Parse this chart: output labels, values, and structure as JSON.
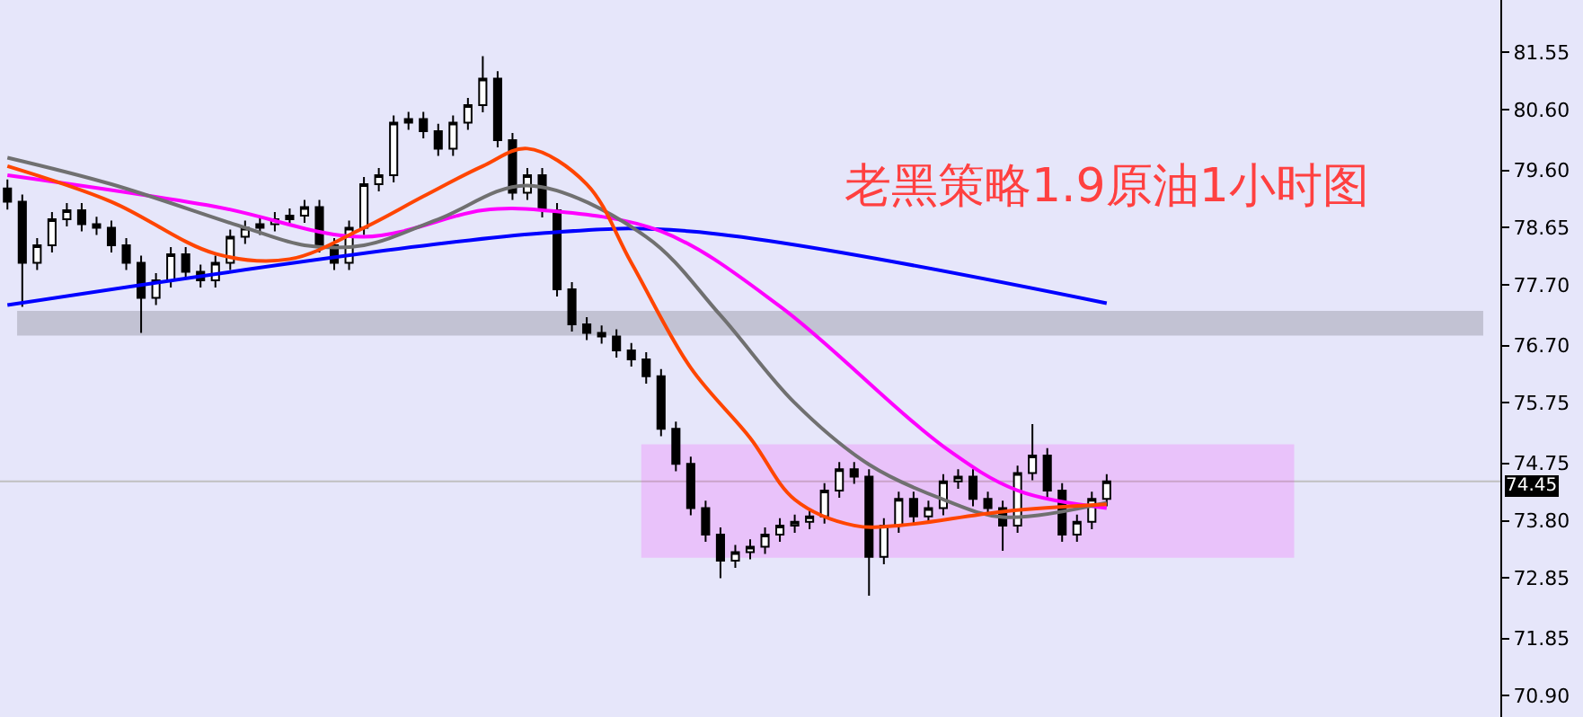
{
  "chart_data": {
    "type": "candlestick",
    "title": "老黑策略1.9原油1小时图",
    "categories": [
      null,
      null,
      null,
      null,
      null,
      null,
      null,
      null,
      null,
      null,
      null,
      null,
      null,
      null,
      null,
      null,
      null,
      null,
      null,
      null,
      null,
      null,
      null,
      null,
      null,
      null,
      null,
      null,
      null,
      null,
      null,
      null,
      null,
      null,
      null,
      null,
      null,
      null,
      null,
      null,
      null,
      null,
      null,
      null,
      null,
      null,
      null,
      null,
      null,
      null,
      null,
      null,
      null,
      null,
      null,
      null,
      null,
      null,
      null,
      null,
      null,
      null,
      null,
      null,
      null,
      null,
      null,
      null,
      null,
      null,
      null,
      null,
      null,
      null,
      null,
      null,
      null,
      null,
      null,
      null,
      null,
      null,
      null,
      null,
      null,
      null,
      null,
      null,
      null,
      null,
      null,
      null,
      null,
      null,
      null,
      null,
      null,
      null,
      null,
      null,
      null
    ],
    "ohlc": [
      [
        79.3,
        79.45,
        78.95,
        79.08
      ],
      [
        79.08,
        79.2,
        77.34,
        78.07
      ],
      [
        78.07,
        78.48,
        77.95,
        78.36
      ],
      [
        78.36,
        78.91,
        78.24,
        78.79
      ],
      [
        78.79,
        79.06,
        78.67,
        78.94
      ],
      [
        78.94,
        79.06,
        78.59,
        78.71
      ],
      [
        78.71,
        78.83,
        78.53,
        78.65
      ],
      [
        78.65,
        78.77,
        78.24,
        78.36
      ],
      [
        78.36,
        78.48,
        77.95,
        78.07
      ],
      [
        78.07,
        78.19,
        76.91,
        77.49
      ],
      [
        77.49,
        77.9,
        77.37,
        77.78
      ],
      [
        77.78,
        78.33,
        77.66,
        78.21
      ],
      [
        78.21,
        78.33,
        77.8,
        77.92
      ],
      [
        77.92,
        78.04,
        77.66,
        77.78
      ],
      [
        77.78,
        78.19,
        77.66,
        78.07
      ],
      [
        78.07,
        78.62,
        77.95,
        78.5
      ],
      [
        78.5,
        78.77,
        78.38,
        78.65
      ],
      [
        78.65,
        78.83,
        78.53,
        78.71
      ],
      [
        78.71,
        78.91,
        78.59,
        78.79
      ],
      [
        78.79,
        78.97,
        78.67,
        78.85
      ],
      [
        78.85,
        79.11,
        78.73,
        78.99
      ],
      [
        78.99,
        79.11,
        78.24,
        78.36
      ],
      [
        78.36,
        78.48,
        77.95,
        78.07
      ],
      [
        78.07,
        78.77,
        77.95,
        78.65
      ],
      [
        78.65,
        79.49,
        78.53,
        79.37
      ],
      [
        79.37,
        79.64,
        79.25,
        79.52
      ],
      [
        79.52,
        80.51,
        79.4,
        80.39
      ],
      [
        80.39,
        80.57,
        80.27,
        80.45
      ],
      [
        80.45,
        80.57,
        80.13,
        80.25
      ],
      [
        80.25,
        80.37,
        79.84,
        79.96
      ],
      [
        79.96,
        80.51,
        79.84,
        80.39
      ],
      [
        80.39,
        80.8,
        80.27,
        80.68
      ],
      [
        80.68,
        81.49,
        80.56,
        81.12
      ],
      [
        81.12,
        81.24,
        79.98,
        80.1
      ],
      [
        80.1,
        80.22,
        79.11,
        79.23
      ],
      [
        79.23,
        79.64,
        79.11,
        79.52
      ],
      [
        79.52,
        79.64,
        78.82,
        78.94
      ],
      [
        78.94,
        79.06,
        77.51,
        77.63
      ],
      [
        77.63,
        77.75,
        76.93,
        77.05
      ],
      [
        77.05,
        77.17,
        76.79,
        76.91
      ],
      [
        76.91,
        77.03,
        76.73,
        76.85
      ],
      [
        76.85,
        76.97,
        76.5,
        76.62
      ],
      [
        76.62,
        76.74,
        76.35,
        76.47
      ],
      [
        76.47,
        76.59,
        76.07,
        76.19
      ],
      [
        76.19,
        76.31,
        75.2,
        75.32
      ],
      [
        75.32,
        75.44,
        74.62,
        74.74
      ],
      [
        74.74,
        74.86,
        73.89,
        74.01
      ],
      [
        74.01,
        74.13,
        73.45,
        73.57
      ],
      [
        73.57,
        73.69,
        72.85,
        73.14
      ],
      [
        73.14,
        73.4,
        73.02,
        73.28
      ],
      [
        73.28,
        73.49,
        73.16,
        73.37
      ],
      [
        73.37,
        73.69,
        73.25,
        73.57
      ],
      [
        73.57,
        73.84,
        73.45,
        73.72
      ],
      [
        73.72,
        73.9,
        73.6,
        73.78
      ],
      [
        73.78,
        73.99,
        73.66,
        73.87
      ],
      [
        73.87,
        74.42,
        73.75,
        74.3
      ],
      [
        74.3,
        74.77,
        74.18,
        74.65
      ],
      [
        74.65,
        74.77,
        74.41,
        74.53
      ],
      [
        74.53,
        74.65,
        72.56,
        73.2
      ],
      [
        73.2,
        73.84,
        73.08,
        73.72
      ],
      [
        73.72,
        74.28,
        73.6,
        74.16
      ],
      [
        74.16,
        74.28,
        73.75,
        73.87
      ],
      [
        73.87,
        74.13,
        73.75,
        74.01
      ],
      [
        74.01,
        74.57,
        73.89,
        74.45
      ],
      [
        74.45,
        74.65,
        74.33,
        74.53
      ],
      [
        74.53,
        74.65,
        74.04,
        74.16
      ],
      [
        74.16,
        74.28,
        73.89,
        74.01
      ],
      [
        74.01,
        74.13,
        73.3,
        73.72
      ],
      [
        73.72,
        74.71,
        73.6,
        74.59
      ],
      [
        74.59,
        75.4,
        74.47,
        74.88
      ],
      [
        74.88,
        75.0,
        74.18,
        74.3
      ],
      [
        74.3,
        74.42,
        73.45,
        73.57
      ],
      [
        73.57,
        73.9,
        73.45,
        73.78
      ],
      [
        73.78,
        74.28,
        73.66,
        74.16
      ],
      [
        74.16,
        74.57,
        74.04,
        74.45
      ],
      null,
      null,
      null,
      null,
      null,
      null,
      null,
      null,
      null,
      null,
      null,
      null,
      null,
      null,
      null,
      null,
      null,
      null,
      null,
      null,
      null,
      null,
      null,
      null,
      null,
      null
    ],
    "series": [
      {
        "type": "line",
        "color": "#0000ff",
        "values": [
          77.37,
          null,
          null,
          null,
          null,
          null,
          null,
          null,
          null,
          null,
          null,
          null,
          null,
          null,
          null,
          null,
          null,
          null,
          null,
          null,
          null,
          null,
          null,
          null,
          null,
          null,
          null,
          null,
          null,
          null,
          null,
          null,
          null,
          null,
          null,
          null,
          78.56,
          null,
          null,
          null,
          null,
          null,
          null,
          null,
          null,
          null,
          78.59,
          null,
          null,
          null,
          null,
          null,
          null,
          null,
          null,
          null,
          null,
          null,
          null,
          null,
          null,
          null,
          null,
          null,
          null,
          null,
          null,
          null,
          null,
          null,
          null,
          null,
          null,
          null,
          77.4,
          null,
          null,
          null,
          null,
          null,
          null,
          null,
          null,
          null,
          null,
          null,
          null,
          null,
          null,
          null,
          null,
          null,
          null,
          null,
          null,
          null,
          null,
          null,
          null,
          null,
          null
        ]
      },
      {
        "type": "line",
        "color": "#ff00ff",
        "values": [
          79.52,
          null,
          null,
          null,
          null,
          null,
          null,
          null,
          null,
          null,
          null,
          null,
          null,
          null,
          79.0,
          null,
          null,
          null,
          null,
          null,
          null,
          null,
          null,
          null,
          78.5,
          null,
          null,
          null,
          null,
          null,
          null,
          null,
          78.94,
          null,
          null,
          null,
          78.94,
          null,
          null,
          null,
          null,
          null,
          null,
          null,
          78.59,
          null,
          null,
          null,
          null,
          null,
          null,
          null,
          77.35,
          null,
          null,
          null,
          null,
          null,
          null,
          null,
          null,
          null,
          null,
          75.03,
          null,
          null,
          null,
          null,
          74.3,
          null,
          null,
          null,
          null,
          null,
          74.01,
          null,
          null,
          null,
          null,
          null,
          null,
          null,
          null,
          null,
          null,
          null,
          null,
          null,
          null,
          null,
          null,
          null,
          null,
          null,
          null,
          null,
          null,
          null,
          null,
          null,
          null
        ]
      },
      {
        "type": "line",
        "color": "#707070",
        "values": [
          79.81,
          null,
          null,
          null,
          null,
          null,
          null,
          79.37,
          null,
          null,
          null,
          null,
          null,
          null,
          null,
          null,
          78.65,
          null,
          null,
          null,
          78.36,
          null,
          null,
          null,
          78.36,
          null,
          null,
          null,
          null,
          78.79,
          null,
          null,
          null,
          null,
          null,
          79.35,
          null,
          null,
          null,
          null,
          null,
          null,
          null,
          78.5,
          null,
          null,
          null,
          null,
          77.2,
          null,
          null,
          null,
          null,
          75.75,
          null,
          null,
          null,
          null,
          74.73,
          null,
          null,
          null,
          null,
          74.15,
          null,
          null,
          null,
          73.86,
          null,
          null,
          null,
          null,
          null,
          null,
          74.1,
          null,
          null,
          null,
          null,
          null,
          null,
          null,
          null,
          null,
          null,
          null,
          null,
          null,
          null,
          null,
          null,
          null,
          null,
          null,
          null,
          null,
          null,
          null,
          null,
          null,
          null
        ]
      },
      {
        "type": "line",
        "color": "#ff4500",
        "values": [
          79.67,
          null,
          null,
          null,
          null,
          null,
          null,
          79.08,
          null,
          null,
          null,
          null,
          null,
          null,
          78.22,
          null,
          null,
          null,
          null,
          78.13,
          null,
          null,
          null,
          null,
          78.65,
          null,
          null,
          null,
          79.17,
          null,
          null,
          null,
          79.67,
          null,
          null,
          79.96,
          null,
          null,
          null,
          79.37,
          null,
          null,
          78.07,
          null,
          null,
          null,
          76.33,
          null,
          null,
          null,
          75.17,
          null,
          null,
          74.15,
          null,
          null,
          null,
          73.72,
          null,
          null,
          73.72,
          null,
          null,
          null,
          null,
          null,
          null,
          73.95,
          null,
          null,
          null,
          null,
          null,
          null,
          74.07,
          null,
          null,
          null,
          null,
          null,
          null,
          null,
          null,
          null,
          null,
          null,
          null,
          null,
          null,
          null,
          null,
          null,
          null,
          null,
          null,
          null,
          null,
          null,
          null,
          null,
          null
        ]
      }
    ],
    "ylim": [
      70.55,
      82.42
    ],
    "yticks": [
      {
        "value": 81.55,
        "label": "81.55"
      },
      {
        "value": 80.6,
        "label": "80.60"
      },
      {
        "value": 79.6,
        "label": "79.60"
      },
      {
        "value": 78.65,
        "label": "78.65"
      },
      {
        "value": 77.7,
        "label": "77.70"
      },
      {
        "value": 76.7,
        "label": "76.70"
      },
      {
        "value": 75.75,
        "label": "75.75"
      },
      {
        "value": 74.75,
        "label": "74.75"
      },
      {
        "value": 73.8,
        "label": "73.80"
      },
      {
        "value": 72.85,
        "label": "72.85"
      },
      {
        "value": 71.85,
        "label": "71.85"
      },
      {
        "value": 70.9,
        "label": "70.90"
      }
    ],
    "tick_labels": "y",
    "ref_lines": [
      {
        "axis": "y",
        "value": 74.45,
        "label": "74.45",
        "color": "#c0c0c0"
      }
    ],
    "bands": [
      {
        "axis": "y",
        "from": 76.88,
        "to": 77.26,
        "color": "#000000"
      },
      {
        "axis": "y",
        "from": 73.2,
        "to": 75.05,
        "color": "#ff00ff"
      }
    ]
  }
}
